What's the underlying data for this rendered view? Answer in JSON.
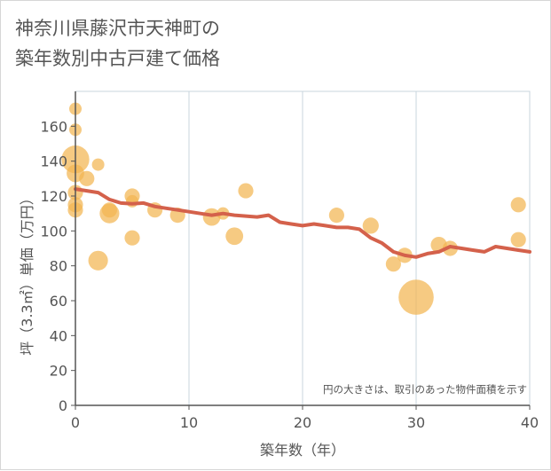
{
  "title_line1": "神奈川県藤沢市天神町の",
  "title_line2": "築年数別中古戸建て価格",
  "chart_data": {
    "type": "scatter",
    "title": "神奈川県藤沢市天神町の築年数別中古戸建て価格",
    "xlabel": "築年数（年）",
    "ylabel": "坪（3.3㎡）単価（万円）",
    "xlim": [
      0,
      40
    ],
    "ylim": [
      0,
      180
    ],
    "xticks": [
      0,
      10,
      20,
      30,
      40
    ],
    "yticks": [
      0,
      20,
      40,
      60,
      80,
      100,
      120,
      140,
      160
    ],
    "grid": true,
    "note": "円の大きさは、取引のあった物件面積を示す",
    "colors": {
      "bubble": "#f2b552",
      "line": "#d4614b",
      "grid": "#c9d4de",
      "text": "#555555"
    },
    "bubbles": [
      {
        "x": 0,
        "y": 170,
        "size": 1
      },
      {
        "x": 0,
        "y": 158,
        "size": 1
      },
      {
        "x": 0,
        "y": 141,
        "size": 5
      },
      {
        "x": 0,
        "y": 133,
        "size": 2
      },
      {
        "x": 0,
        "y": 122,
        "size": 1.5
      },
      {
        "x": 0,
        "y": 115,
        "size": 1.5
      },
      {
        "x": 0,
        "y": 112,
        "size": 1.5
      },
      {
        "x": 1,
        "y": 130,
        "size": 1.5
      },
      {
        "x": 2,
        "y": 138,
        "size": 1
      },
      {
        "x": 2,
        "y": 83,
        "size": 2.5
      },
      {
        "x": 3,
        "y": 110,
        "size": 2.5
      },
      {
        "x": 3,
        "y": 112,
        "size": 1.5
      },
      {
        "x": 5,
        "y": 120,
        "size": 1.5
      },
      {
        "x": 5,
        "y": 117,
        "size": 1
      },
      {
        "x": 5,
        "y": 96,
        "size": 1.5
      },
      {
        "x": 7,
        "y": 112,
        "size": 1.5
      },
      {
        "x": 9,
        "y": 109,
        "size": 1.5
      },
      {
        "x": 12,
        "y": 108,
        "size": 2
      },
      {
        "x": 13,
        "y": 110,
        "size": 1
      },
      {
        "x": 14,
        "y": 97,
        "size": 2
      },
      {
        "x": 15,
        "y": 123,
        "size": 1.5
      },
      {
        "x": 23,
        "y": 109,
        "size": 1.5
      },
      {
        "x": 26,
        "y": 103,
        "size": 1.7
      },
      {
        "x": 28,
        "y": 81,
        "size": 1.5
      },
      {
        "x": 29,
        "y": 86,
        "size": 1.5
      },
      {
        "x": 30,
        "y": 62,
        "size": 8
      },
      {
        "x": 32,
        "y": 92,
        "size": 1.7
      },
      {
        "x": 33,
        "y": 90,
        "size": 1.5
      },
      {
        "x": 39,
        "y": 115,
        "size": 1.5
      },
      {
        "x": 39,
        "y": 95,
        "size": 1.5
      }
    ],
    "trend": [
      {
        "x": 0,
        "y": 124
      },
      {
        "x": 1,
        "y": 123
      },
      {
        "x": 2,
        "y": 122
      },
      {
        "x": 3,
        "y": 118
      },
      {
        "x": 4,
        "y": 116
      },
      {
        "x": 5,
        "y": 115.5
      },
      {
        "x": 6,
        "y": 116
      },
      {
        "x": 7,
        "y": 114
      },
      {
        "x": 8,
        "y": 113
      },
      {
        "x": 9,
        "y": 112
      },
      {
        "x": 10,
        "y": 111
      },
      {
        "x": 11,
        "y": 110
      },
      {
        "x": 12,
        "y": 109
      },
      {
        "x": 13,
        "y": 110
      },
      {
        "x": 14,
        "y": 109
      },
      {
        "x": 15,
        "y": 108.5
      },
      {
        "x": 16,
        "y": 108
      },
      {
        "x": 17,
        "y": 109
      },
      {
        "x": 18,
        "y": 105
      },
      {
        "x": 19,
        "y": 104
      },
      {
        "x": 20,
        "y": 103
      },
      {
        "x": 21,
        "y": 104
      },
      {
        "x": 22,
        "y": 103
      },
      {
        "x": 23,
        "y": 102
      },
      {
        "x": 24,
        "y": 102
      },
      {
        "x": 25,
        "y": 101
      },
      {
        "x": 26,
        "y": 96
      },
      {
        "x": 27,
        "y": 93
      },
      {
        "x": 28,
        "y": 88
      },
      {
        "x": 29,
        "y": 86
      },
      {
        "x": 30,
        "y": 85
      },
      {
        "x": 31,
        "y": 87
      },
      {
        "x": 32,
        "y": 88
      },
      {
        "x": 33,
        "y": 91
      },
      {
        "x": 34,
        "y": 90
      },
      {
        "x": 35,
        "y": 89
      },
      {
        "x": 36,
        "y": 88
      },
      {
        "x": 37,
        "y": 91
      },
      {
        "x": 38,
        "y": 90
      },
      {
        "x": 39,
        "y": 89
      },
      {
        "x": 40,
        "y": 88
      }
    ]
  }
}
